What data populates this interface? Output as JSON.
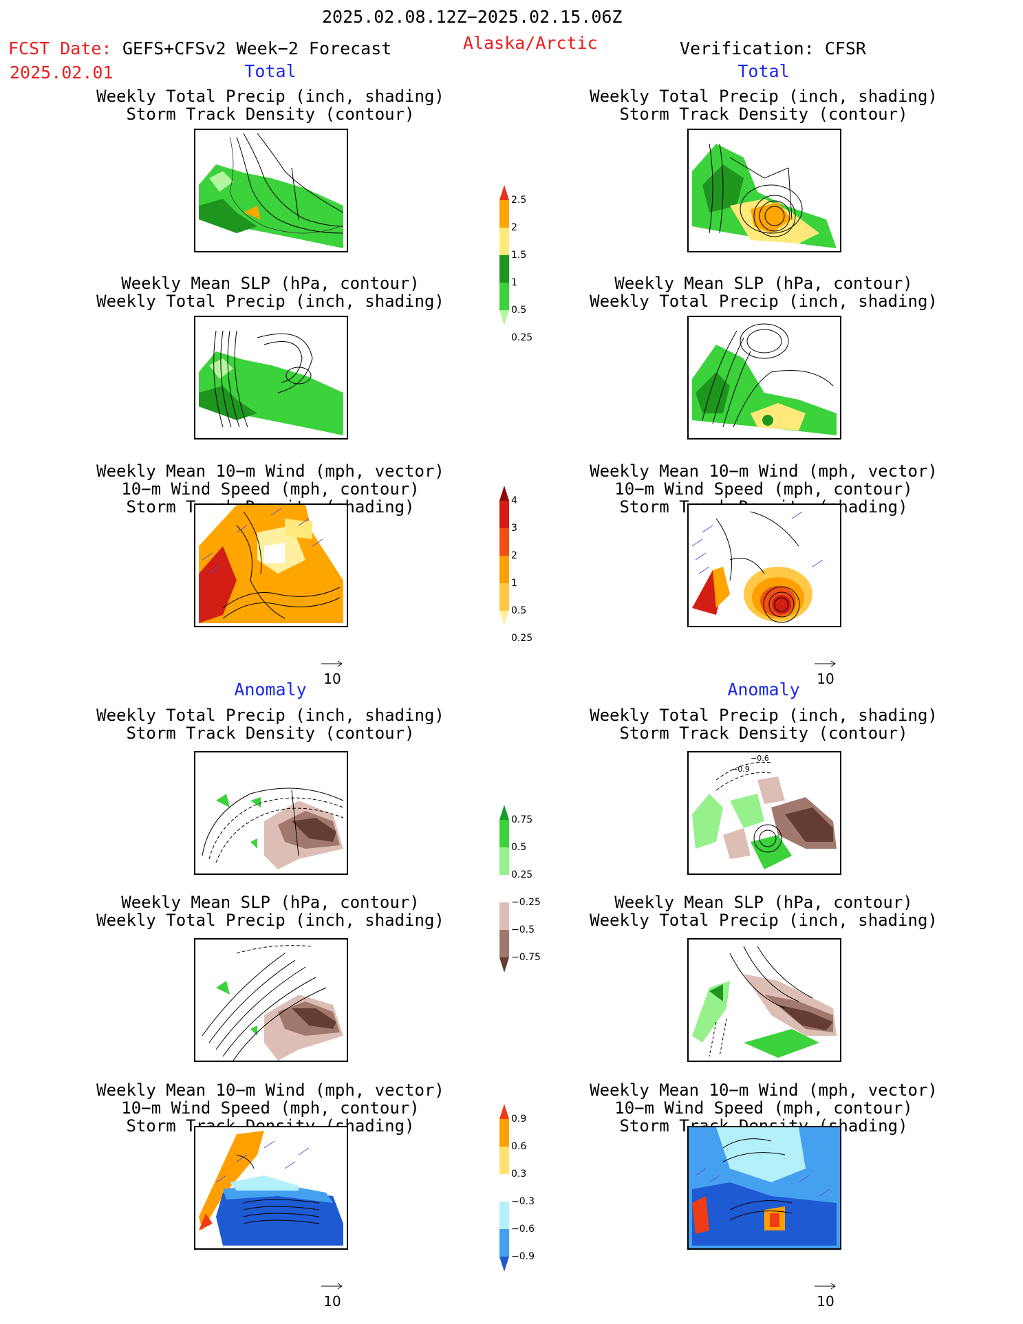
{
  "header": {
    "period": "2025.02.08.12Z−2025.02.15.06Z",
    "fcst_label": "FCST Date:",
    "model": "GEFS+CFSv2 Week−2 Forecast",
    "fcst_date": "2025.02.01",
    "region": "Alaska/Arctic",
    "verification": "Verification: CFSR"
  },
  "sections": {
    "total": "Total",
    "anomaly": "Anomaly"
  },
  "panel_titles": {
    "precip_track": [
      "Weekly Total Precip (inch, shading)",
      "Storm Track Density (contour)"
    ],
    "slp_precip": [
      "Weekly Mean SLP (hPa, contour)",
      "Weekly Total Precip (inch, shading)"
    ],
    "wind_track": [
      "Weekly Mean 10−m Wind (mph, vector)",
      "10−m Wind Speed (mph, contour)",
      "Storm Track Density (shading)"
    ]
  },
  "vector_ref": "10",
  "contour_labels": [
    "−0.6",
    "−0.9"
  ],
  "colorbars": [
    {
      "id": "precip-total",
      "labels": [
        "2.5",
        "2",
        "1.5",
        "1",
        "0.5",
        "0.25"
      ],
      "colors": [
        "#e8321e",
        "#ffa500",
        "#ffe97a",
        "#1e961e",
        "#3cd23c",
        "#b4f5a0"
      ]
    },
    {
      "id": "track-total",
      "labels": [
        "4",
        "3",
        "2",
        "1",
        "0.5",
        "0.25"
      ],
      "colors": [
        "#8c0a0a",
        "#d21e14",
        "#f05014",
        "#ffa000",
        "#ffc846",
        "#fff0a0"
      ]
    },
    {
      "id": "precip-anom",
      "labels": [
        "0.75",
        "0.5",
        "0.25",
        "−0.25",
        "−0.5",
        "−0.75"
      ],
      "colors": [
        "#14a028",
        "#3cd23c",
        "#96f08c",
        "#ffffff",
        "#dcbeb4",
        "#a0786e",
        "#643c32"
      ]
    },
    {
      "id": "track-anom",
      "labels": [
        "0.9",
        "0.6",
        "0.3",
        "−0.3",
        "−0.6",
        "−0.9"
      ],
      "colors": [
        "#f03c14",
        "#ffa000",
        "#ffe070",
        "#ffffff",
        "#b4f0fa",
        "#46a0f0",
        "#1e5ad2"
      ]
    }
  ],
  "colors": {
    "red": "#ee1c1c",
    "blue": "#1c2ae8",
    "green": "#3cd23c",
    "darkgreen": "#1e961e",
    "orange": "#ffa500",
    "brown": "#8a5a4e",
    "cyan": "#b4f0fa",
    "deepblue": "#1e5ad2"
  }
}
